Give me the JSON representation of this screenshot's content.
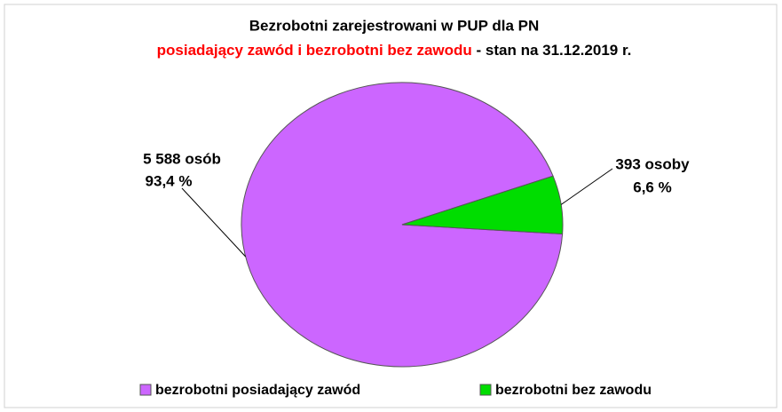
{
  "chart_data": {
    "type": "pie",
    "title": "Bezrobotni zarejestrowani w PUP dla PN",
    "subtitle": [
      "posiadający  zawód i  bezrobotni bez zawodu",
      " - stan na 31.12.2019 r."
    ],
    "categories": [
      "bezrobotni posiadający zawód",
      "bezrobotni bez zawodu"
    ],
    "values": [
      93.4,
      6.6
    ],
    "value_labels": [
      "93,4 %",
      "6,6 %"
    ],
    "count_labels": [
      "5 588 osób",
      "393 osoby"
    ],
    "colors": [
      "#cc66ff",
      "#00dd00"
    ],
    "legend": "bottom"
  }
}
